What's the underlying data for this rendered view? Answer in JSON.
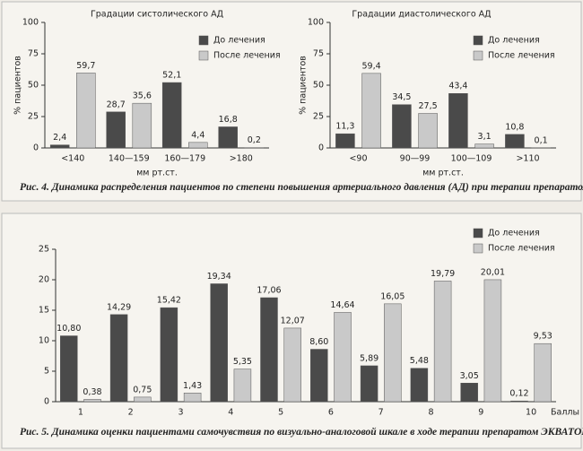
{
  "chart_data": [
    {
      "type": "bar",
      "title": "Градации систолического АД",
      "y_label": "% пациентов",
      "x_label": "мм рт.ст.",
      "categories": [
        "<140",
        "140—159",
        "160—179",
        ">180"
      ],
      "series": [
        {
          "name": "До лечения",
          "color": "#4a4a4a",
          "values": [
            2.4,
            28.7,
            52.1,
            16.8
          ],
          "value_labels": [
            "2,4",
            "28,7",
            "52,1",
            "16,8"
          ]
        },
        {
          "name": "После лечения",
          "color": "#c9c9c9",
          "values": [
            59.7,
            35.6,
            4.4,
            0.2
          ],
          "value_labels": [
            "59,7",
            "35,6",
            "4,4",
            "0,2"
          ]
        }
      ],
      "ylim": [
        0,
        100
      ],
      "yticks": [
        0,
        25,
        50,
        75,
        100
      ],
      "legend": "upper right"
    },
    {
      "type": "bar",
      "title": "Градации диастолического АД",
      "y_label": "% пациентов",
      "x_label": "мм рт.ст.",
      "categories": [
        "<90",
        "90—99",
        "100—109",
        ">110"
      ],
      "series": [
        {
          "name": "До лечения",
          "color": "#4a4a4a",
          "values": [
            11.3,
            34.5,
            43.4,
            10.8
          ],
          "value_labels": [
            "11,3",
            "34,5",
            "43,4",
            "10,8"
          ]
        },
        {
          "name": "После лечения",
          "color": "#c9c9c9",
          "values": [
            59.4,
            27.5,
            3.1,
            0.1
          ],
          "value_labels": [
            "59,4",
            "27,5",
            "3,1",
            "0,1"
          ]
        }
      ],
      "ylim": [
        0,
        100
      ],
      "yticks": [
        0,
        25,
        50,
        75,
        100
      ],
      "legend": "upper right"
    },
    {
      "type": "bar",
      "x_label": "Баллы",
      "categories": [
        "1",
        "2",
        "3",
        "4",
        "5",
        "6",
        "7",
        "8",
        "9",
        "10"
      ],
      "series": [
        {
          "name": "До лечения",
          "color": "#4a4a4a",
          "values": [
            10.8,
            14.29,
            15.42,
            19.34,
            17.06,
            8.6,
            5.89,
            5.48,
            3.05,
            0.12
          ],
          "value_labels": [
            "10,80",
            "14,29",
            "15,42",
            "19,34",
            "17,06",
            "8,60",
            "5,89",
            "5,48",
            "3,05",
            "0,12"
          ]
        },
        {
          "name": "После лечения",
          "color": "#c9c9c9",
          "values": [
            0.38,
            0.75,
            1.43,
            5.35,
            12.07,
            14.64,
            16.05,
            19.79,
            20.01,
            9.53
          ],
          "value_labels": [
            "0,38",
            "0,75",
            "1,43",
            "5,35",
            "12,07",
            "14,64",
            "16,05",
            "19,79",
            "20,01",
            "9,53"
          ]
        }
      ],
      "ylim": [
        0,
        25
      ],
      "yticks": [
        0,
        5,
        10,
        15,
        20,
        25
      ],
      "legend": "upper right"
    }
  ],
  "captions": [
    {
      "label": "Рис. 4.",
      "text": "Динамика распределения пациентов по степени повышения артериального давления (АД) при терапии препаратом ЭКВАТОР."
    },
    {
      "label": "Рис. 5.",
      "text": "Динамика оценки пациентами самочувствия по визуально-аналоговой шкале в ходе терапии препаратом ЭКВАТОР."
    }
  ]
}
